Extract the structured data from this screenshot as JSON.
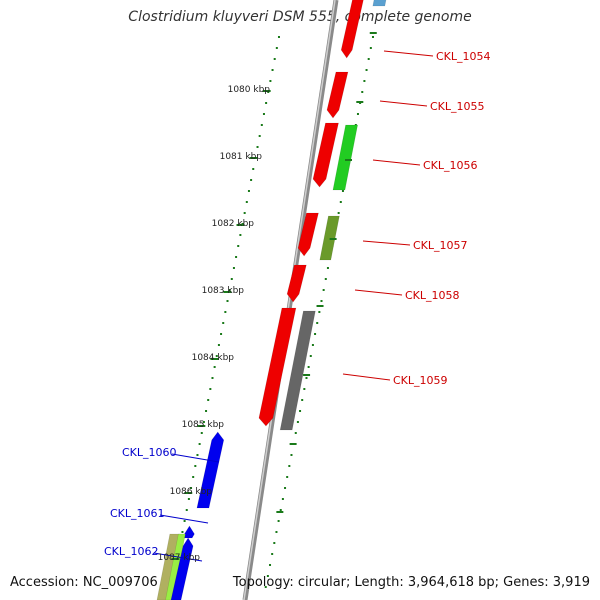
{
  "title": "Clostridium kluyveri DSM 555, complete genome",
  "footer": {
    "accession": "Accession: NC_009706",
    "topology": "Topology: circular; Length: 3,964,618 bp; Genes: 3,919"
  },
  "colors": {
    "backbone": "#7a7a7a",
    "tick": "#1a7a1a",
    "forward_label": "#cc0000",
    "reverse_label": "#0000cc",
    "kbp_label": "#222222"
  },
  "kbp_labels": [
    "1080 kbp",
    "1081 kbp",
    "1082 kbp",
    "1083 kbp",
    "1084 kbp",
    "1085 kbp",
    "1086 kbp",
    "1087 kbp"
  ],
  "genes_labeled": [
    {
      "id": "CKL_1054",
      "strand": "+"
    },
    {
      "id": "CKL_1055",
      "strand": "+"
    },
    {
      "id": "CKL_1056",
      "strand": "+"
    },
    {
      "id": "CKL_1057",
      "strand": "+"
    },
    {
      "id": "CKL_1058",
      "strand": "+"
    },
    {
      "id": "CKL_1059",
      "strand": "+"
    },
    {
      "id": "CKL_1060",
      "strand": "-"
    },
    {
      "id": "CKL_1061",
      "strand": "-"
    },
    {
      "id": "CKL_1062",
      "strand": "-"
    }
  ]
}
